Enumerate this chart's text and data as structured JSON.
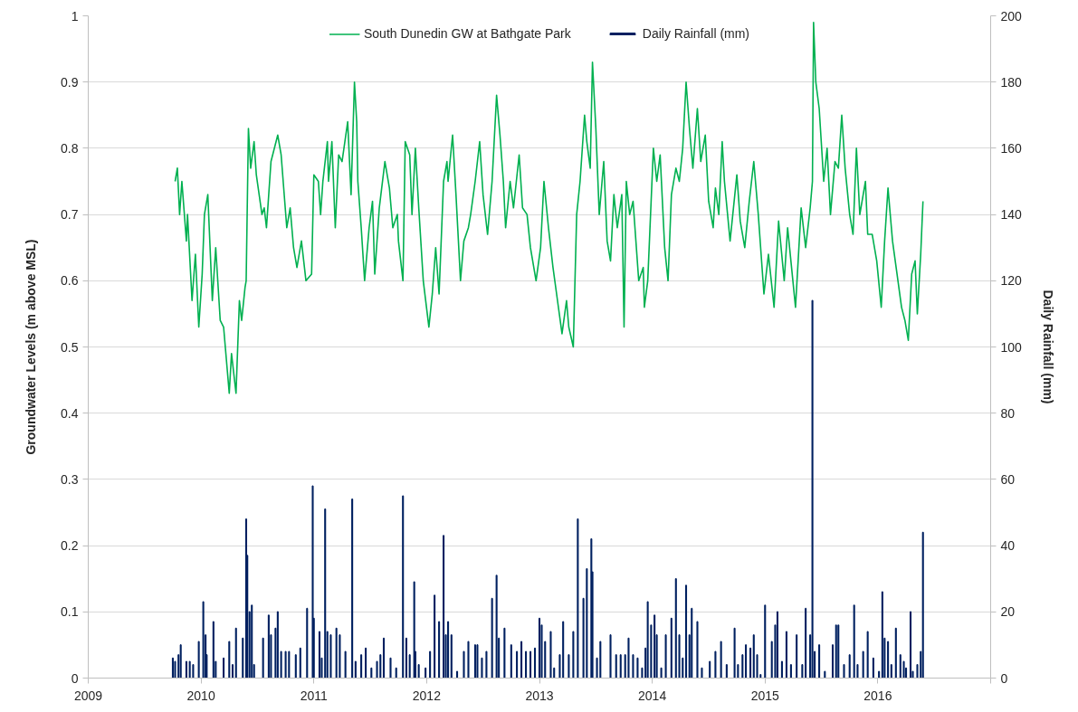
{
  "chart_data": {
    "type": "line",
    "ylabel": "Groundwater Levels (m above MSL)",
    "y2label": "Daily Rainfall (mm)",
    "xlim": [
      2009,
      2017
    ],
    "xticks": [
      2009,
      2010,
      2011,
      2012,
      2013,
      2014,
      2015,
      2016,
      {
        "value": 2017,
        "label": null
      }
    ],
    "ylim": [
      0,
      1
    ],
    "yticks": [
      0,
      0.1,
      0.2,
      0.3,
      0.4,
      0.5,
      0.6,
      0.7,
      0.8,
      0.9,
      1
    ],
    "y2lim": [
      0,
      200
    ],
    "y2ticks": [
      0,
      20,
      40,
      60,
      80,
      100,
      120,
      140,
      160,
      180,
      200
    ],
    "grid": "y",
    "legend": "top",
    "series": [
      {
        "name": "South Dunedin GW at Bathgate Park",
        "color": "#00b050",
        "x": [
          2009.77,
          2009.79,
          2009.81,
          2009.83,
          2009.87,
          2009.88,
          2009.92,
          2009.95,
          2009.98,
          2010.01,
          2010.03,
          2010.06,
          2010.1,
          2010.13,
          2010.17,
          2010.2,
          2010.25,
          2010.27,
          2010.31,
          2010.34,
          2010.36,
          2010.39,
          2010.4,
          2010.42,
          2010.44,
          2010.47,
          2010.49,
          2010.54,
          2010.56,
          2010.58,
          2010.62,
          2010.68,
          2010.71,
          2010.76,
          2010.79,
          2010.82,
          2010.85,
          2010.89,
          2010.93,
          2010.98,
          2011.0,
          2011.04,
          2011.06,
          2011.08,
          2011.12,
          2011.13,
          2011.16,
          2011.19,
          2011.22,
          2011.25,
          2011.3,
          2011.33,
          2011.36,
          2011.38,
          2011.39,
          2011.42,
          2011.45,
          2011.49,
          2011.52,
          2011.54,
          2011.58,
          2011.63,
          2011.67,
          2011.7,
          2011.74,
          2011.75,
          2011.79,
          2011.81,
          2011.85,
          2011.87,
          2011.9,
          2011.93,
          2011.97,
          2012.02,
          2012.05,
          2012.08,
          2012.11,
          2012.15,
          2012.18,
          2012.19,
          2012.23,
          2012.26,
          2012.3,
          2012.33,
          2012.37,
          2012.39,
          2012.43,
          2012.47,
          2012.5,
          2012.54,
          2012.58,
          2012.62,
          2012.65,
          2012.68,
          2012.7,
          2012.74,
          2012.77,
          2012.82,
          2012.85,
          2012.89,
          2012.92,
          2012.97,
          2013.01,
          2013.04,
          2013.08,
          2013.12,
          2013.16,
          2013.2,
          2013.24,
          2013.26,
          2013.3,
          2013.33,
          2013.36,
          2013.4,
          2013.42,
          2013.45,
          2013.47,
          2013.5,
          2013.53,
          2013.57,
          2013.6,
          2013.63,
          2013.66,
          2013.69,
          2013.73,
          2013.75,
          2013.77,
          2013.8,
          2013.83,
          2013.88,
          2013.92,
          2013.93,
          2013.96,
          2013.99,
          2014.01,
          2014.04,
          2014.07,
          2014.11,
          2014.14,
          2014.17,
          2014.21,
          2014.24,
          2014.27,
          2014.3,
          2014.33,
          2014.36,
          2014.4,
          2014.43,
          2014.47,
          2014.5,
          2014.54,
          2014.56,
          2014.59,
          2014.62,
          2014.64,
          2014.69,
          2014.75,
          2014.78,
          2014.82,
          2014.86,
          2014.9,
          2014.94,
          2014.99,
          2015.03,
          2015.08,
          2015.12,
          2015.17,
          2015.2,
          2015.27,
          2015.32,
          2015.36,
          2015.4,
          2015.42,
          2015.43,
          2015.45,
          2015.48,
          2015.52,
          2015.55,
          2015.58,
          2015.62,
          2015.65,
          2015.68,
          2015.71,
          2015.75,
          2015.78,
          2015.81,
          2015.84,
          2015.89,
          2015.91,
          2015.95,
          2015.99,
          2016.03,
          2016.06,
          2016.09,
          2016.13,
          2016.17,
          2016.21,
          2016.24,
          2016.27,
          2016.3,
          2016.33,
          2016.35,
          2016.38,
          2016.4
        ],
        "values": [
          0.75,
          0.77,
          0.7,
          0.75,
          0.66,
          0.7,
          0.57,
          0.64,
          0.53,
          0.61,
          0.7,
          0.73,
          0.57,
          0.65,
          0.54,
          0.53,
          0.43,
          0.49,
          0.43,
          0.57,
          0.54,
          0.59,
          0.6,
          0.83,
          0.77,
          0.81,
          0.76,
          0.7,
          0.71,
          0.68,
          0.78,
          0.82,
          0.79,
          0.68,
          0.71,
          0.65,
          0.62,
          0.66,
          0.6,
          0.61,
          0.76,
          0.75,
          0.7,
          0.75,
          0.81,
          0.75,
          0.81,
          0.68,
          0.79,
          0.78,
          0.84,
          0.73,
          0.9,
          0.84,
          0.75,
          0.68,
          0.6,
          0.68,
          0.72,
          0.61,
          0.71,
          0.78,
          0.74,
          0.68,
          0.7,
          0.66,
          0.6,
          0.81,
          0.79,
          0.7,
          0.8,
          0.71,
          0.6,
          0.53,
          0.58,
          0.65,
          0.58,
          0.75,
          0.78,
          0.75,
          0.82,
          0.73,
          0.6,
          0.66,
          0.68,
          0.7,
          0.75,
          0.81,
          0.73,
          0.67,
          0.75,
          0.88,
          0.82,
          0.75,
          0.68,
          0.75,
          0.71,
          0.79,
          0.71,
          0.7,
          0.65,
          0.6,
          0.65,
          0.75,
          0.68,
          0.62,
          0.57,
          0.52,
          0.57,
          0.53,
          0.5,
          0.7,
          0.75,
          0.85,
          0.81,
          0.77,
          0.93,
          0.83,
          0.7,
          0.78,
          0.66,
          0.63,
          0.73,
          0.68,
          0.73,
          0.53,
          0.75,
          0.7,
          0.72,
          0.6,
          0.62,
          0.56,
          0.6,
          0.72,
          0.8,
          0.75,
          0.79,
          0.65,
          0.6,
          0.73,
          0.77,
          0.75,
          0.8,
          0.9,
          0.83,
          0.77,
          0.86,
          0.78,
          0.82,
          0.72,
          0.68,
          0.74,
          0.7,
          0.81,
          0.75,
          0.66,
          0.76,
          0.69,
          0.65,
          0.72,
          0.78,
          0.7,
          0.58,
          0.64,
          0.56,
          0.69,
          0.6,
          0.68,
          0.56,
          0.71,
          0.65,
          0.71,
          0.75,
          0.99,
          0.9,
          0.86,
          0.75,
          0.8,
          0.7,
          0.78,
          0.77,
          0.85,
          0.77,
          0.7,
          0.67,
          0.8,
          0.7,
          0.75,
          0.67,
          0.67,
          0.63,
          0.56,
          0.66,
          0.74,
          0.66,
          0.61,
          0.56,
          0.54,
          0.51,
          0.61,
          0.63,
          0.55,
          0.64,
          0.72
        ]
      },
      {
        "name": "Daily Rainfall (mm)",
        "type": "bar",
        "axis": "y2",
        "color": "#002060",
        "x": [
          2009.75,
          2009.77,
          2009.8,
          2009.82,
          2009.87,
          2009.9,
          2009.93,
          2009.98,
          2010.02,
          2010.04,
          2010.05,
          2010.11,
          2010.13,
          2010.2,
          2010.25,
          2010.28,
          2010.31,
          2010.37,
          2010.4,
          2010.41,
          2010.43,
          2010.45,
          2010.47,
          2010.55,
          2010.6,
          2010.62,
          2010.66,
          2010.68,
          2010.71,
          2010.75,
          2010.78,
          2010.84,
          2010.88,
          2010.94,
          2010.99,
          2011.0,
          2011.05,
          2011.07,
          2011.1,
          2011.12,
          2011.15,
          2011.2,
          2011.23,
          2011.28,
          2011.34,
          2011.37,
          2011.42,
          2011.46,
          2011.51,
          2011.56,
          2011.59,
          2011.62,
          2011.68,
          2011.73,
          2011.79,
          2011.82,
          2011.85,
          2011.89,
          2011.9,
          2011.93,
          2011.99,
          2012.03,
          2012.07,
          2012.11,
          2012.15,
          2012.17,
          2012.19,
          2012.22,
          2012.27,
          2012.33,
          2012.37,
          2012.43,
          2012.45,
          2012.49,
          2012.53,
          2012.58,
          2012.62,
          2012.64,
          2012.69,
          2012.75,
          2012.8,
          2012.84,
          2012.88,
          2012.92,
          2012.96,
          2013.0,
          2013.02,
          2013.05,
          2013.1,
          2013.13,
          2013.18,
          2013.21,
          2013.26,
          2013.3,
          2013.34,
          2013.39,
          2013.42,
          2013.46,
          2013.47,
          2013.51,
          2013.54,
          2013.63,
          2013.68,
          2013.72,
          2013.76,
          2013.79,
          2013.83,
          2013.87,
          2013.91,
          2013.94,
          2013.96,
          2013.99,
          2014.02,
          2014.04,
          2014.08,
          2014.12,
          2014.17,
          2014.21,
          2014.24,
          2014.27,
          2014.3,
          2014.33,
          2014.35,
          2014.4,
          2014.44,
          2014.51,
          2014.56,
          2014.61,
          2014.66,
          2014.73,
          2014.76,
          2014.8,
          2014.83,
          2014.87,
          2014.9,
          2014.93,
          2014.96,
          2015.0,
          2015.06,
          2015.09,
          2015.11,
          2015.15,
          2015.19,
          2015.23,
          2015.28,
          2015.33,
          2015.36,
          2015.4,
          2015.42,
          2015.44,
          2015.48,
          2015.53,
          2015.6,
          2015.63,
          2015.65,
          2015.7,
          2015.75,
          2015.79,
          2015.82,
          2015.87,
          2015.91,
          2015.96,
          2016.01,
          2016.04,
          2016.06,
          2016.09,
          2016.12,
          2016.16,
          2016.2,
          2016.23,
          2016.25,
          2016.29,
          2016.31,
          2016.35,
          2016.38,
          2016.4
        ],
        "values": [
          6,
          5,
          7,
          10,
          5,
          5,
          4,
          11,
          23,
          13,
          7,
          17,
          5,
          6,
          11,
          4,
          15,
          12,
          48,
          37,
          20,
          22,
          4,
          12,
          19,
          13,
          15,
          20,
          8,
          8,
          8,
          7,
          9,
          21,
          58,
          18,
          14,
          6,
          51,
          14,
          13,
          15,
          13,
          8,
          54,
          5,
          7,
          9,
          3,
          5,
          7,
          12,
          6,
          3,
          55,
          12,
          7,
          29,
          8,
          4,
          3,
          8,
          25,
          17,
          43,
          13,
          17,
          13,
          2,
          8,
          11,
          10,
          10,
          6,
          8,
          24,
          31,
          12,
          15,
          10,
          8,
          11,
          8,
          8,
          9,
          18,
          16,
          11,
          14,
          3,
          7,
          17,
          7,
          14,
          48,
          24,
          33,
          42,
          32,
          6,
          11,
          13,
          7,
          7,
          7,
          12,
          7,
          6,
          3,
          9,
          23,
          16,
          19,
          13,
          3,
          13,
          18,
          30,
          13,
          6,
          28,
          13,
          21,
          17,
          3,
          5,
          8,
          11,
          4,
          15,
          4,
          7,
          10,
          9,
          13,
          7,
          1,
          22,
          11,
          16,
          20,
          5,
          14,
          4,
          13,
          4,
          21,
          13,
          114,
          8,
          10,
          2,
          10,
          16,
          16,
          4,
          7,
          22,
          4,
          8,
          14,
          6,
          2,
          26,
          12,
          11,
          4,
          15,
          7,
          5,
          3,
          20,
          2,
          4,
          8,
          44
        ]
      }
    ]
  }
}
